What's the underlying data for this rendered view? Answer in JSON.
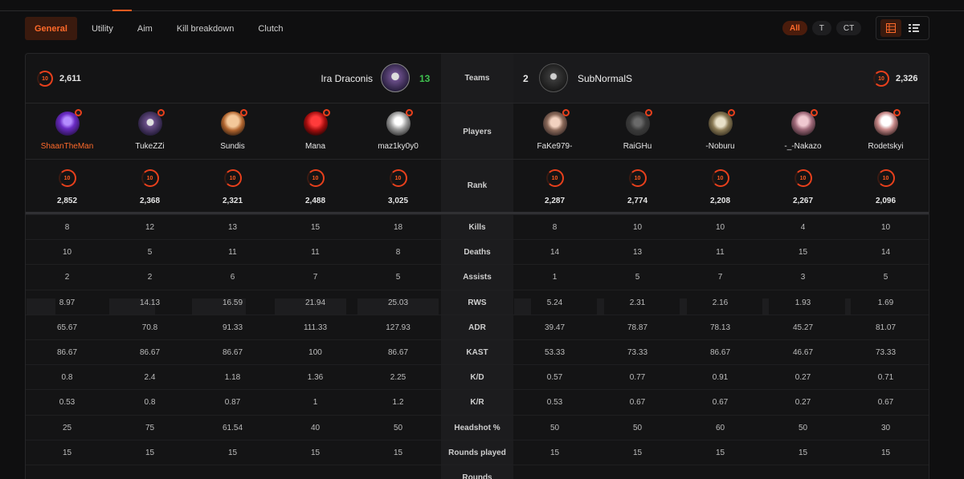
{
  "tabs": [
    {
      "label": "General",
      "active": true
    },
    {
      "label": "Utility",
      "active": false
    },
    {
      "label": "Aim",
      "active": false
    },
    {
      "label": "Kill breakdown",
      "active": false
    },
    {
      "label": "Clutch",
      "active": false
    }
  ],
  "side_filters": [
    {
      "label": "All",
      "active": true
    },
    {
      "label": "T",
      "active": false
    },
    {
      "label": "CT",
      "active": false
    }
  ],
  "view_toggle": {
    "icons": [
      "table-view-icon",
      "list-view-icon"
    ],
    "active": 0
  },
  "level_badge": "10",
  "colors": {
    "accent": "#ff5a1f",
    "win": "#3ec04e",
    "level": "#e8401c"
  },
  "team_left": {
    "name": "Ira Draconis",
    "score": "13",
    "elo": "2,611"
  },
  "team_right": {
    "name": "SubNormalS",
    "score": "2",
    "elo": "2,326"
  },
  "labels": {
    "teams": "Teams",
    "players": "Players",
    "rank": "Rank",
    "stats": [
      "Kills",
      "Deaths",
      "Assists",
      "RWS",
      "ADR",
      "KAST",
      "K/D",
      "K/R",
      "Headshot %",
      "Rounds played",
      "Rounds"
    ]
  },
  "players_left": [
    {
      "name": "ShaanTheMan",
      "elo": "2,852",
      "highlight": true
    },
    {
      "name": "TukeZZi",
      "elo": "2,368"
    },
    {
      "name": "Sundis",
      "elo": "2,321"
    },
    {
      "name": "Mana",
      "elo": "2,488"
    },
    {
      "name": "maz1ky0y0",
      "elo": "3,025"
    }
  ],
  "players_right": [
    {
      "name": "FaKe979-",
      "elo": "2,287"
    },
    {
      "name": "RaiGHu",
      "elo": "2,774"
    },
    {
      "name": "-Noburu",
      "elo": "2,208"
    },
    {
      "name": "-_-Nakazo",
      "elo": "2,267"
    },
    {
      "name": "Rodetskyi",
      "elo": "2,096"
    }
  ],
  "stats_left": [
    [
      "8",
      "12",
      "13",
      "15",
      "18"
    ],
    [
      "10",
      "5",
      "11",
      "11",
      "8"
    ],
    [
      "2",
      "2",
      "6",
      "7",
      "5"
    ],
    [
      "8.97",
      "14.13",
      "16.59",
      "21.94",
      "25.03"
    ],
    [
      "65.67",
      "70.8",
      "91.33",
      "111.33",
      "127.93"
    ],
    [
      "86.67",
      "86.67",
      "86.67",
      "100",
      "86.67"
    ],
    [
      "0.8",
      "2.4",
      "1.18",
      "1.36",
      "2.25"
    ],
    [
      "0.53",
      "0.8",
      "0.87",
      "1",
      "1.2"
    ],
    [
      "25",
      "75",
      "61.54",
      "40",
      "50"
    ],
    [
      "15",
      "15",
      "15",
      "15",
      "15"
    ],
    [
      "",
      "",
      "",
      "",
      ""
    ]
  ],
  "stats_right": [
    [
      "8",
      "10",
      "10",
      "4",
      "10"
    ],
    [
      "14",
      "13",
      "11",
      "15",
      "14"
    ],
    [
      "1",
      "5",
      "7",
      "3",
      "5"
    ],
    [
      "5.24",
      "2.31",
      "2.16",
      "1.93",
      "1.69"
    ],
    [
      "39.47",
      "78.87",
      "78.13",
      "45.27",
      "81.07"
    ],
    [
      "53.33",
      "73.33",
      "86.67",
      "46.67",
      "73.33"
    ],
    [
      "0.57",
      "0.77",
      "0.91",
      "0.27",
      "0.71"
    ],
    [
      "0.53",
      "0.67",
      "0.67",
      "0.27",
      "0.67"
    ],
    [
      "50",
      "50",
      "60",
      "50",
      "30"
    ],
    [
      "15",
      "15",
      "15",
      "15",
      "15"
    ],
    [
      "",
      "",
      "",
      "",
      ""
    ]
  ]
}
